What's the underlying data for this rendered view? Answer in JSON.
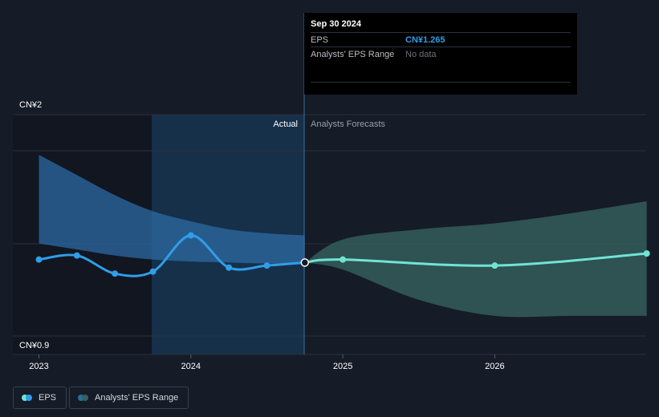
{
  "tooltip": {
    "date": "Sep 30 2024",
    "eps_label": "EPS",
    "eps_value": "CN¥1.265",
    "range_label": "Analysts' EPS Range",
    "range_value": "No data"
  },
  "labels": {
    "actual": "Actual",
    "forecast": "Analysts Forecasts"
  },
  "legend": {
    "eps_label": "EPS",
    "range_label": "Analysts' EPS Range"
  },
  "colors": {
    "background": "#151b27",
    "eps_actual": "#2f9ee8",
    "eps_forecast": "#70e4d4",
    "range_past": "#2c6aa3",
    "range_forecast": "#36605f",
    "highlight": "#16304a"
  },
  "chart_data": {
    "type": "line",
    "title": "",
    "xlabel": "",
    "ylabel": "",
    "ylim": [
      0.9,
      2.0
    ],
    "y_tick_labels": [
      "CN¥2",
      "CN¥0.9"
    ],
    "x_ticks": [
      {
        "year": 2023,
        "label": "2023"
      },
      {
        "year": 2024,
        "label": "2024"
      },
      {
        "year": 2025,
        "label": "2025"
      },
      {
        "year": 2026,
        "label": "2026"
      }
    ],
    "actual_end": 2024.75,
    "series": [
      {
        "key": "eps_actual",
        "x": [
          2023.0,
          2023.25,
          2023.5,
          2023.75,
          2024.0,
          2024.25,
          2024.5,
          2024.75
        ],
        "values": [
          1.28,
          1.3,
          1.21,
          1.22,
          1.4,
          1.24,
          1.25,
          1.265
        ]
      },
      {
        "key": "eps_forecast",
        "x": [
          2024.75,
          2025.0,
          2026.0,
          2027.0
        ],
        "values": [
          1.265,
          1.28,
          1.25,
          1.31
        ]
      }
    ],
    "range_past": {
      "x": [
        2023.0,
        2023.25,
        2023.5,
        2023.75,
        2024.0,
        2024.25,
        2024.5,
        2024.75
      ],
      "high": [
        1.8,
        1.7,
        1.6,
        1.52,
        1.47,
        1.43,
        1.41,
        1.4
      ],
      "low": [
        1.36,
        1.33,
        1.3,
        1.28,
        1.27,
        1.265,
        1.26,
        1.26
      ]
    },
    "range_forecast": {
      "x": [
        2024.75,
        2025.0,
        2025.5,
        2026.0,
        2026.5,
        2027.0
      ],
      "high": [
        1.265,
        1.38,
        1.43,
        1.46,
        1.51,
        1.57
      ],
      "low": [
        1.265,
        1.23,
        1.08,
        1.0,
        1.0,
        1.0
      ]
    }
  }
}
